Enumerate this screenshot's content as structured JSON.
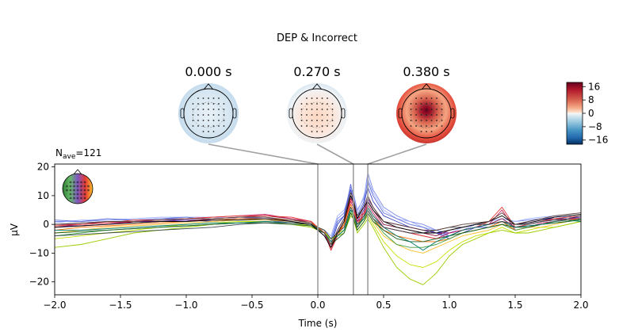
{
  "figure": {
    "title": "DEP & Incorrect",
    "nave_base": "N",
    "nave_sub": "ave",
    "nave_value": "=121"
  },
  "topomaps": [
    {
      "time_label": "0.000 s",
      "time": 0.0
    },
    {
      "time_label": "0.270 s",
      "time": 0.27
    },
    {
      "time_label": "0.380 s",
      "time": 0.38
    }
  ],
  "colorbar": {
    "ticks": [
      "16",
      "8",
      "0",
      "−8",
      "−16"
    ],
    "tick_values": [
      16,
      8,
      0,
      -8,
      -16
    ],
    "range": [
      -18.5,
      18.5
    ],
    "colors": {
      "pos": "#67001f",
      "mid": "#f7f7f7",
      "neg": "#053061"
    }
  },
  "chart_data": {
    "type": "line",
    "xlabel": "Time (s)",
    "ylabel": "µV",
    "xlim": [
      -2.0,
      2.0
    ],
    "ylim": [
      -24.5,
      21
    ],
    "x_ticks": [
      "−2.0",
      "−1.5",
      "−1.0",
      "−0.5",
      "0.0",
      "0.5",
      "1.0",
      "1.5",
      "2.0"
    ],
    "x_tick_values": [
      -2.0,
      -1.5,
      -1.0,
      -0.5,
      0.0,
      0.5,
      1.0,
      1.5,
      2.0
    ],
    "y_ticks": [
      "20",
      "10",
      "0",
      "−10",
      "−20"
    ],
    "y_tick_values": [
      20,
      10,
      0,
      -10,
      -20
    ],
    "vlines": [
      0.0,
      0.27,
      0.38
    ],
    "grid": false,
    "x": [
      -2.0,
      -1.8,
      -1.6,
      -1.4,
      -1.2,
      -1.0,
      -0.8,
      -0.6,
      -0.4,
      -0.2,
      -0.05,
      0.0,
      0.05,
      0.1,
      0.15,
      0.2,
      0.25,
      0.27,
      0.3,
      0.35,
      0.38,
      0.42,
      0.5,
      0.6,
      0.7,
      0.8,
      0.9,
      1.0,
      1.1,
      1.2,
      1.3,
      1.4,
      1.5,
      1.6,
      1.7,
      1.8,
      1.9,
      2.0
    ],
    "series": [
      {
        "color": "#7b8bea",
        "values": [
          1,
          1,
          1.5,
          1.5,
          2,
          2,
          2,
          2.5,
          2,
          1.5,
          0.5,
          -1,
          -3,
          -5,
          2,
          4,
          13,
          11,
          5,
          9,
          18,
          12,
          6,
          3,
          1,
          0,
          -2,
          -4,
          -2,
          0,
          1,
          2,
          1,
          1.5,
          2,
          2.5,
          3,
          2
        ]
      },
      {
        "color": "#a3b2ff",
        "values": [
          0.5,
          1.5,
          1.5,
          2,
          2.5,
          2.5,
          2.5,
          2,
          2,
          1,
          0,
          -1.5,
          -2,
          -4,
          3,
          5,
          12,
          10,
          4,
          10,
          16,
          11,
          5,
          2,
          1,
          -1,
          -2,
          -3,
          -1,
          0,
          1,
          2,
          1,
          2,
          2.5,
          3,
          2.5,
          2
        ]
      },
      {
        "color": "#5f6fd9",
        "values": [
          1.5,
          1,
          2,
          1.5,
          2,
          2.5,
          1.5,
          2,
          2.5,
          1,
          0,
          -2,
          -3,
          -6,
          1,
          3,
          14,
          9,
          3,
          8,
          15,
          10,
          4,
          2,
          0,
          -1,
          -3,
          -4,
          -2,
          -1,
          0,
          1,
          0,
          1,
          2,
          2,
          2.5,
          3
        ]
      },
      {
        "color": "#3b46c2",
        "values": [
          0,
          0.5,
          1,
          1,
          1.5,
          1.5,
          1,
          1.5,
          1.5,
          0.5,
          -0.5,
          -2,
          -3,
          -7,
          0,
          3,
          12,
          8,
          2,
          7,
          13,
          8,
          3,
          1,
          -1,
          -2,
          -3,
          -5,
          -3,
          -1,
          -1,
          0,
          -1,
          0,
          1,
          1.5,
          2,
          1.5
        ]
      },
      {
        "color": "#6a1b9a",
        "values": [
          -1,
          0,
          0.5,
          1,
          1,
          1.5,
          1.5,
          2,
          2,
          1,
          0,
          -2,
          -4,
          -8,
          -2,
          2,
          10,
          7,
          1,
          5,
          9,
          6,
          1,
          0,
          -1,
          -2,
          -3,
          -3,
          -2,
          -1,
          0,
          1,
          0,
          0.5,
          1.5,
          2,
          2,
          2.5
        ]
      },
      {
        "color": "#8b1a3f",
        "values": [
          0,
          0,
          1,
          0.5,
          1,
          1,
          2,
          2.5,
          3,
          2,
          0.5,
          -1,
          -3,
          -9,
          -3,
          1,
          9,
          7,
          0,
          4,
          8,
          5,
          0,
          -1,
          -2,
          -3,
          -4,
          -2,
          -1,
          0,
          0,
          2,
          -1,
          0,
          1,
          2,
          1.5,
          2
        ]
      },
      {
        "color": "#c2185b",
        "values": [
          -1,
          -0.5,
          0,
          1,
          1.5,
          2,
          2.5,
          3,
          3.5,
          2,
          1,
          -1,
          -3,
          -8,
          -3,
          0,
          8,
          6,
          1,
          3,
          7,
          4,
          -1,
          -2,
          -3,
          -4,
          -5,
          -3,
          -2,
          -1,
          0,
          5,
          -2,
          -1,
          0.5,
          1,
          2,
          2
        ]
      },
      {
        "color": "#e53935",
        "values": [
          -0.5,
          0,
          0.5,
          1.5,
          1.5,
          2,
          2.5,
          3,
          3,
          2.5,
          1,
          -1,
          -2,
          -9,
          -4,
          0,
          9,
          7,
          2,
          4,
          6,
          3,
          -1,
          -2,
          -3,
          -4,
          -5,
          -4,
          -2,
          -1,
          1,
          6,
          -1,
          0,
          1,
          2,
          2.5,
          3
        ]
      },
      {
        "color": "#ff6f00",
        "values": [
          -2,
          -1,
          -0.5,
          0,
          0.5,
          1,
          1.5,
          2,
          2,
          1.5,
          0.5,
          -1,
          -3,
          -7,
          -3,
          0,
          7,
          5,
          0,
          3,
          5,
          2,
          -2,
          -4,
          -5,
          -6,
          -6,
          -5,
          -3,
          -2,
          -1,
          1,
          -2,
          -1,
          0,
          1,
          1.5,
          2
        ]
      },
      {
        "color": "#fbc02d",
        "values": [
          -3,
          -2,
          -1,
          -0.5,
          0,
          0.5,
          1,
          1.5,
          1.5,
          1,
          0,
          -1,
          -2,
          -6,
          -3,
          -1,
          6,
          4,
          -1,
          2,
          4,
          1,
          -4,
          -7,
          -9,
          -10,
          -8,
          -6,
          -4,
          -3,
          -2,
          0,
          -2,
          -1,
          -1,
          0,
          1,
          1.5
        ]
      },
      {
        "color": "#c6e000",
        "values": [
          -5,
          -4,
          -3,
          -2,
          -1,
          0,
          0.5,
          1,
          1,
          0.5,
          -0.5,
          -2,
          -3,
          -5,
          -3,
          -2,
          4,
          3,
          -2,
          1,
          3,
          0,
          -6,
          -11,
          -14,
          -15,
          -13,
          -9,
          -6,
          -4,
          -3,
          -1,
          -3,
          -2,
          -1,
          -1,
          0,
          1
        ]
      },
      {
        "color": "#9ccc00",
        "values": [
          -8,
          -7,
          -5,
          -3,
          -2,
          -1,
          0,
          0.5,
          0.5,
          0,
          -1,
          -2,
          -3,
          -5,
          -4,
          -3,
          3,
          2,
          -3,
          0,
          2,
          -1,
          -8,
          -15,
          -19,
          -21,
          -17,
          -11,
          -7,
          -5,
          -3,
          -2,
          -3,
          -3,
          -2,
          -1,
          0,
          1
        ]
      },
      {
        "color": "#43a047",
        "values": [
          -4,
          -3,
          -2,
          -1.5,
          -1,
          -0.5,
          0,
          0.5,
          1,
          0.5,
          0,
          -1.5,
          -3,
          -6,
          -4,
          -2,
          5,
          3,
          -1,
          2,
          5,
          2,
          -3,
          -7,
          -8,
          -8,
          -7,
          -5,
          -3,
          -2,
          -1,
          0,
          -2,
          -1,
          0,
          0.5,
          1,
          1.5
        ]
      },
      {
        "color": "#1b5e20",
        "values": [
          -3,
          -2.5,
          -2,
          -1.5,
          -1,
          -0.5,
          0,
          0.5,
          0.5,
          0,
          -0.5,
          -2,
          -3,
          -7,
          -5,
          -3,
          4,
          2,
          -2,
          1,
          4,
          1,
          -2,
          -5,
          -6,
          -6,
          -5,
          -4,
          -3,
          -2,
          -1,
          0,
          -1,
          -1,
          0,
          0.5,
          1,
          2
        ]
      },
      {
        "color": "#00796b",
        "values": [
          -2,
          -2,
          -1.5,
          -1,
          -0.5,
          0,
          0.5,
          0.5,
          1,
          0.5,
          0,
          -1.5,
          -3,
          -6,
          -4,
          -2,
          5,
          4,
          0,
          2,
          6,
          3,
          -1,
          -4,
          -6,
          -9,
          -6,
          -4,
          -2,
          -1,
          0,
          1,
          -1,
          -0.5,
          0,
          1,
          1.5,
          1
        ]
      },
      {
        "color": "#37474f",
        "values": [
          -4,
          -3.5,
          -3,
          -2.5,
          -2,
          -1.5,
          -1,
          0,
          0.5,
          0.5,
          0,
          -1,
          -2,
          -5,
          -3,
          -1,
          6,
          4,
          -1,
          3,
          5,
          2,
          -1,
          -2,
          -3,
          -3,
          -2,
          -1,
          -1,
          0,
          0,
          1,
          0,
          0,
          1,
          1.5,
          2,
          3
        ]
      },
      {
        "color": "#000000",
        "values": [
          -1,
          -0.5,
          0,
          0.5,
          1,
          1,
          1.5,
          1.5,
          2,
          1,
          0,
          -2,
          -4,
          -8,
          -3,
          1,
          10,
          8,
          2,
          6,
          8,
          5,
          1,
          -1,
          -2,
          -3,
          -3,
          -2,
          -1,
          0,
          1,
          3,
          0,
          0.5,
          1.5,
          2.5,
          3,
          3.5
        ]
      },
      {
        "color": "#5d4037",
        "values": [
          0,
          0.5,
          1,
          1,
          1.5,
          2,
          2,
          2.5,
          2.5,
          1.5,
          0.5,
          -1.5,
          -3,
          -7,
          -2,
          2,
          11,
          9,
          3,
          6,
          10,
          6,
          1,
          0,
          -1,
          -2,
          -2,
          -1,
          0,
          0.5,
          1,
          4,
          0,
          1,
          2,
          3,
          3.5,
          4
        ]
      }
    ]
  }
}
